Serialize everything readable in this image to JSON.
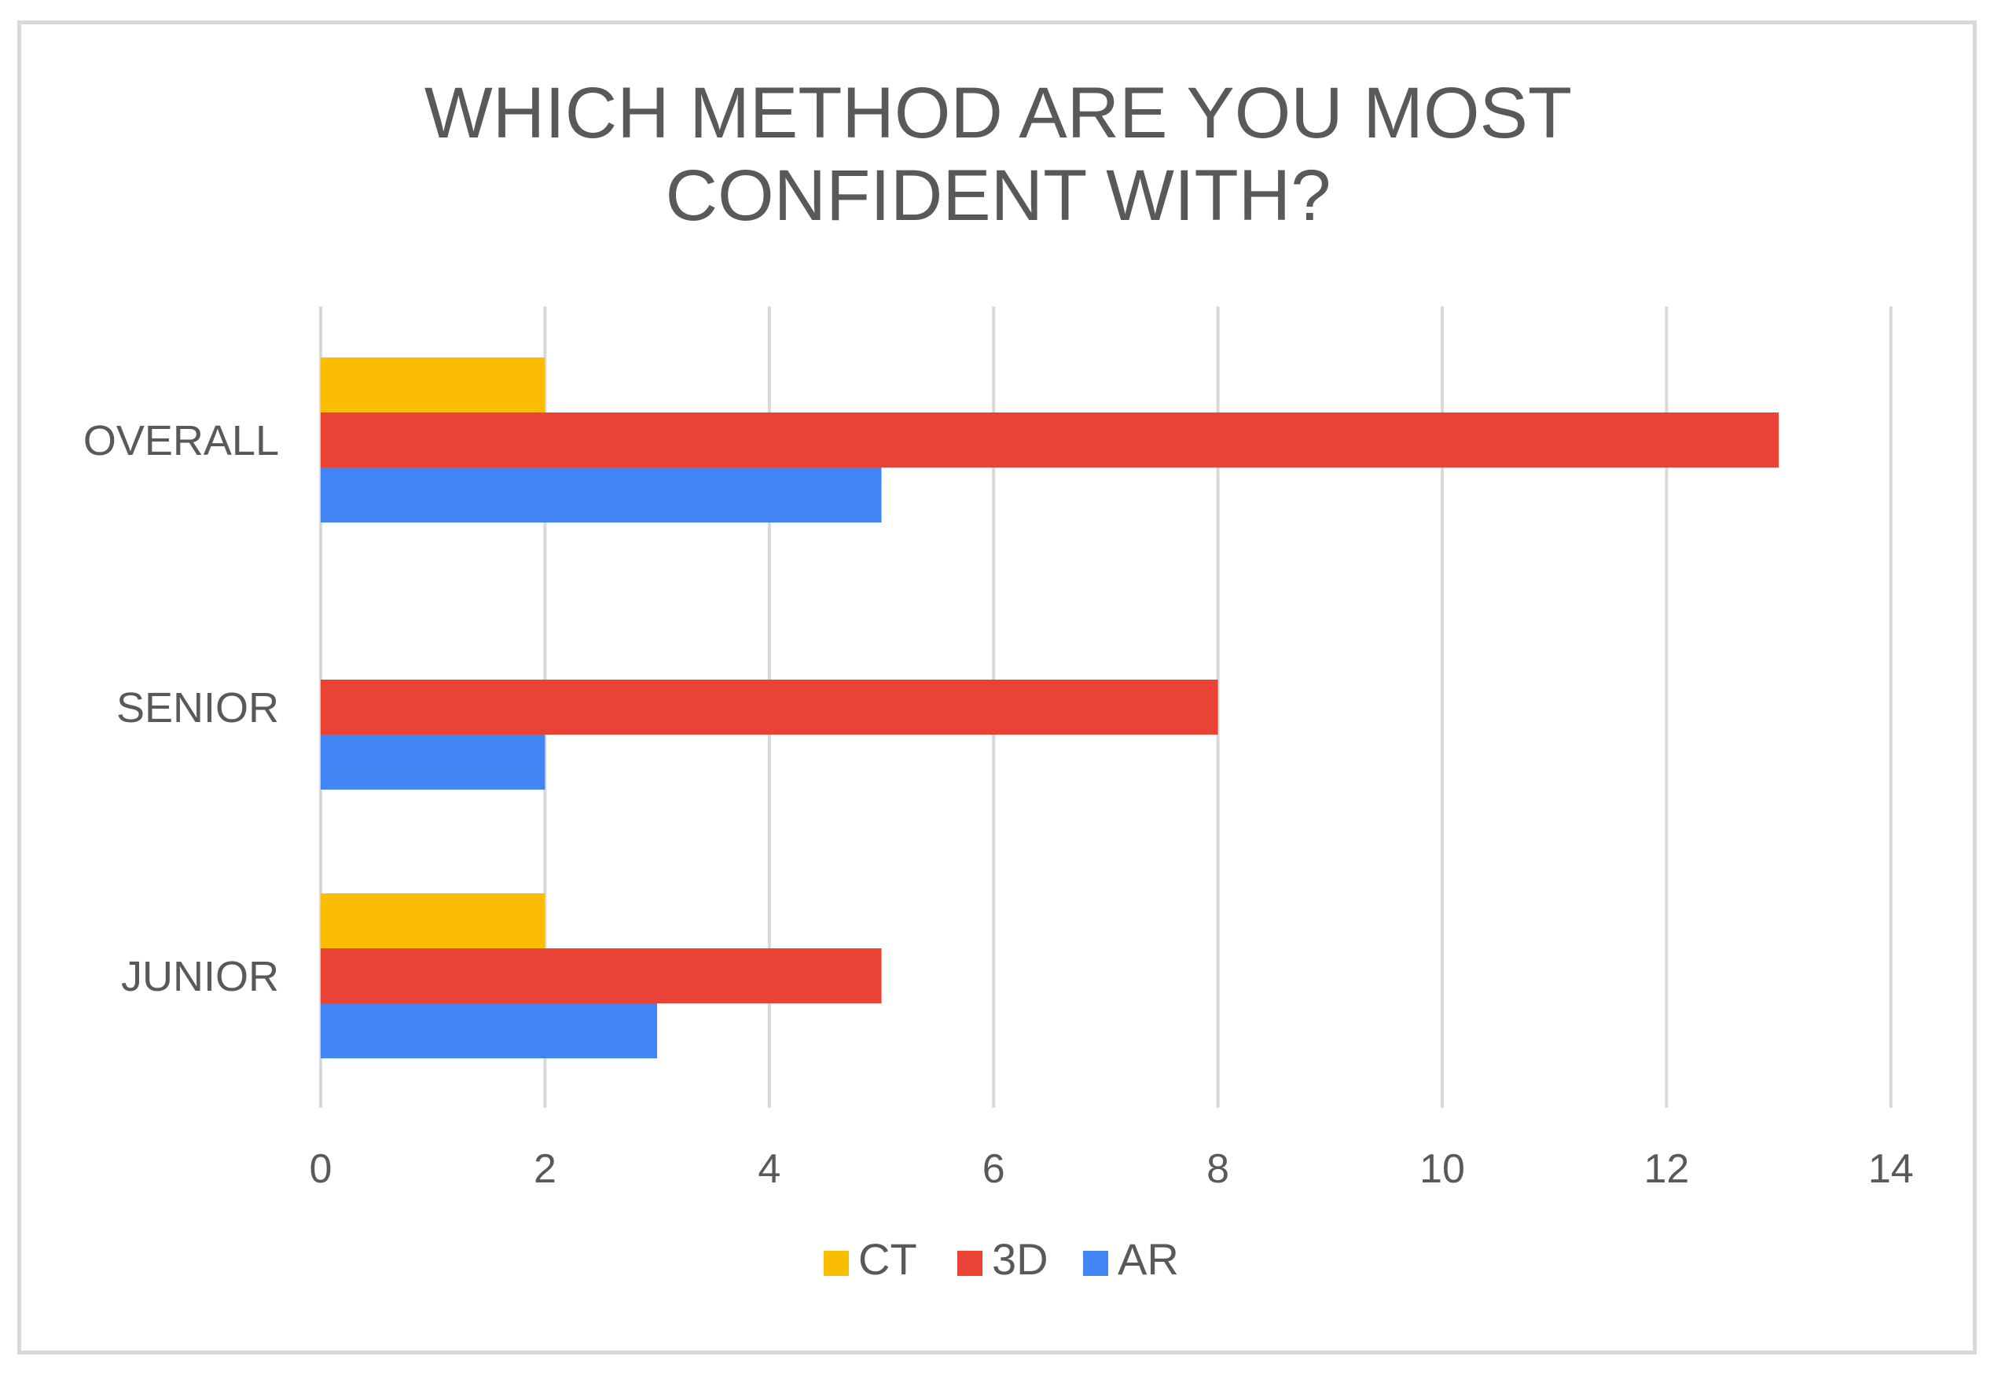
{
  "chart_data": {
    "type": "bar",
    "orientation": "horizontal",
    "title": [
      "WHICH METHOD ARE YOU MOST",
      "CONFIDENT WITH?"
    ],
    "categories": [
      "OVERALL",
      "SENIOR",
      "JUNIOR"
    ],
    "series": [
      {
        "name": "CT",
        "color": "#fbbc04",
        "values": [
          2,
          0,
          2
        ]
      },
      {
        "name": "3D",
        "color": "#ea4335",
        "values": [
          13,
          8,
          5
        ]
      },
      {
        "name": "AR",
        "color": "#4285f4",
        "values": [
          5,
          2,
          3
        ]
      }
    ],
    "xlim": [
      0,
      14
    ],
    "x_ticks": [
      "0",
      "2",
      "4",
      "6",
      "8",
      "10",
      "12",
      "14"
    ],
    "grid": true,
    "legend_position": "bottom"
  }
}
